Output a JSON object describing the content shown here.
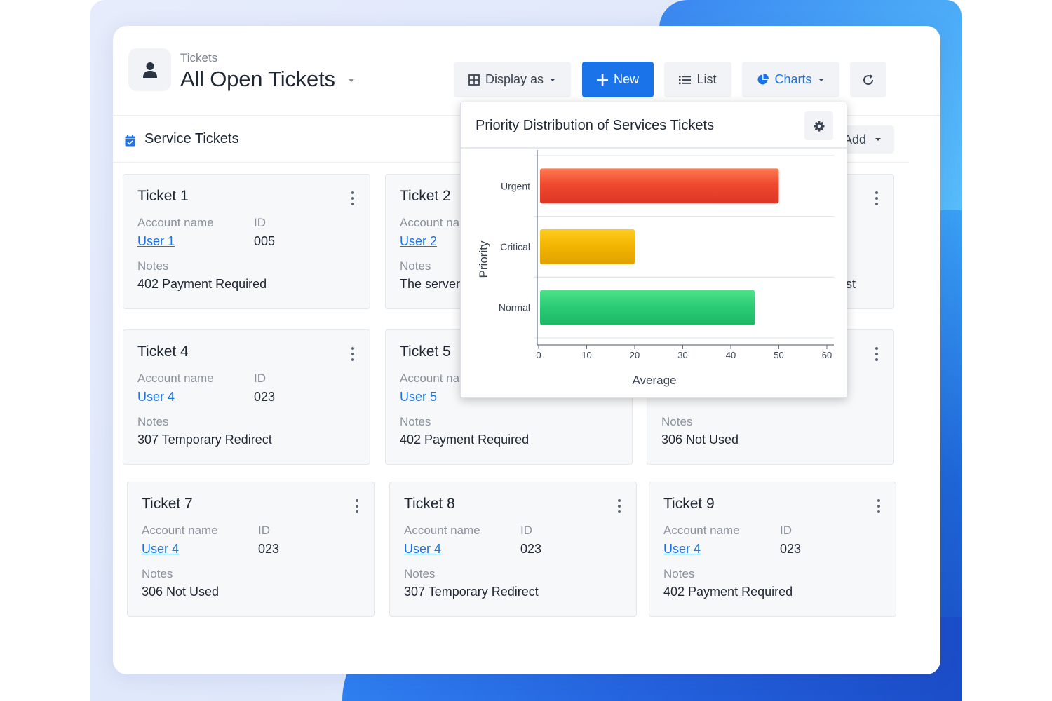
{
  "header": {
    "breadcrumb": "Tickets",
    "title": "All Open Tickets"
  },
  "toolbar": {
    "display_as": "Display as",
    "new": "New",
    "list": "List",
    "charts": "Charts"
  },
  "section": {
    "title": "Service Tickets",
    "add": "Add"
  },
  "labels": {
    "account_name": "Account name",
    "id": "ID",
    "notes": "Notes"
  },
  "tickets": [
    {
      "title": "Ticket 1",
      "account_label": "Account name",
      "user": "User 1",
      "id": "005",
      "notes": "402 Payment Required"
    },
    {
      "title": "Ticket 2",
      "account_label": "Account na",
      "user": "User 2",
      "id": "",
      "notes": "The server"
    },
    {
      "title": "",
      "account_label": "",
      "user": "",
      "id": "",
      "notes": "st"
    },
    {
      "title": "Ticket 4",
      "account_label": "Account name",
      "user": "User 4",
      "id": "023",
      "notes": "307 Temporary Redirect"
    },
    {
      "title": "Ticket 5",
      "account_label": "Account na",
      "user": "User 5",
      "id": "",
      "notes": "402 Payment Required"
    },
    {
      "title": "",
      "account_label": "",
      "user": "",
      "id": "",
      "notes": "306 Not Used"
    },
    {
      "title": "Ticket 7",
      "account_label": "Account name",
      "user": "User 4",
      "id": "023",
      "notes": "306 Not Used"
    },
    {
      "title": "Ticket 8",
      "account_label": "Account name",
      "user": "User 4",
      "id": "023",
      "notes": "307 Temporary Redirect"
    },
    {
      "title": "Ticket 9",
      "account_label": "Account name",
      "user": "User 4",
      "id": "023",
      "notes": "402 Payment Required"
    }
  ],
  "colors": {
    "accent": "#1a73e8",
    "urgent": "#e8412c",
    "critical": "#f0b300",
    "normal": "#27c470"
  },
  "chart_data": {
    "type": "bar",
    "orientation": "horizontal",
    "title": "Priority Distribution of Services Tickets",
    "categories": [
      "Urgent",
      "Critical",
      "Normal"
    ],
    "values": [
      50,
      20,
      45
    ],
    "xlabel": "Average",
    "ylabel": "Priority",
    "xlim": [
      0,
      60
    ],
    "xticks": [
      0,
      10,
      20,
      30,
      40,
      50,
      60
    ],
    "grid": true
  }
}
